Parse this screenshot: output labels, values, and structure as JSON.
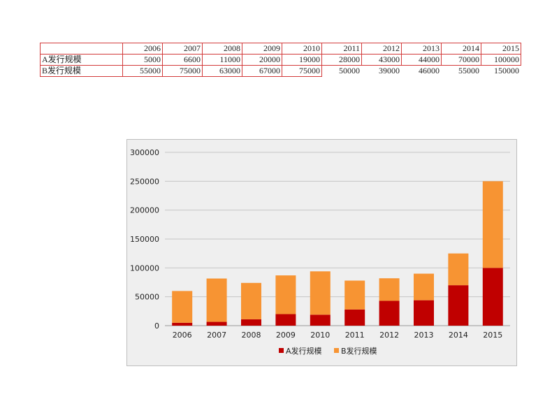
{
  "table": {
    "header": [
      "",
      "2006",
      "2007",
      "2008",
      "2009",
      "2010",
      "2011",
      "2012",
      "2013",
      "2014",
      "2015"
    ],
    "rows": [
      {
        "label": "A发行规模",
        "values": [
          "5000",
          "6600",
          "11000",
          "20000",
          "19000",
          "28000",
          "43000",
          "44000",
          "70000",
          "100000"
        ]
      },
      {
        "label": "B发行规模",
        "values": [
          "55000",
          "75000",
          "63000",
          "67000",
          "75000",
          "50000",
          "39000",
          "46000",
          "55000",
          "150000"
        ]
      }
    ]
  },
  "chart_data": {
    "type": "bar",
    "stacked": true,
    "categories": [
      "2006",
      "2007",
      "2008",
      "2009",
      "2010",
      "2011",
      "2012",
      "2013",
      "2014",
      "2015"
    ],
    "series": [
      {
        "name": "A发行规模",
        "color": "#c00000",
        "values": [
          5000,
          6600,
          11000,
          20000,
          19000,
          28000,
          43000,
          44000,
          70000,
          100000
        ]
      },
      {
        "name": "B发行规模",
        "color": "#f79433",
        "values": [
          55000,
          75000,
          63000,
          67000,
          75000,
          50000,
          39000,
          46000,
          55000,
          150000
        ]
      }
    ],
    "yticks": [
      "300000",
      "250000",
      "200000",
      "150000",
      "100000",
      "50000",
      "0"
    ],
    "ylim": [
      0,
      300000
    ],
    "grid": true,
    "legend": "bottom",
    "background": "#efefef"
  }
}
